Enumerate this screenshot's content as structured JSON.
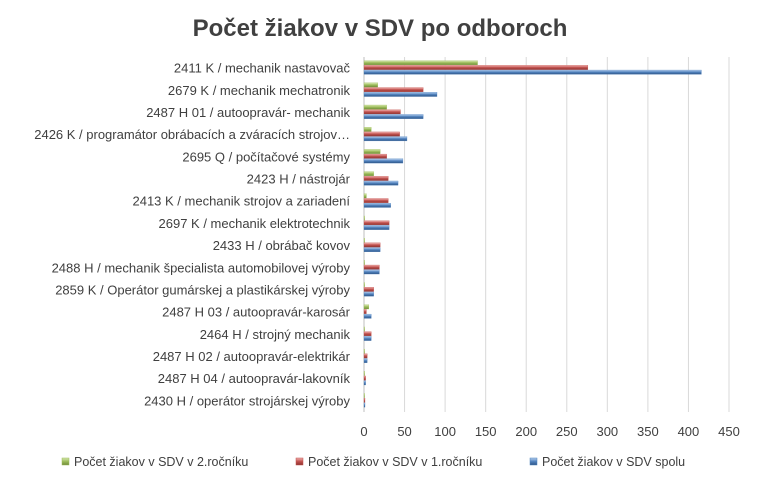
{
  "chart_data": {
    "type": "bar",
    "orientation": "horizontal",
    "title": "Počet žiakov v SDV po odboroch",
    "xlim": [
      0,
      450
    ],
    "x_ticks": [
      "0",
      "50",
      "100",
      "150",
      "200",
      "250",
      "300",
      "350",
      "400",
      "450"
    ],
    "grid": "vertical",
    "legend_position": "bottom",
    "categories": [
      "2411 K  / mechanik nastavovač",
      "2679 K  / mechanik mechatronik",
      "2487 H 01 / autoopravár- mechanik",
      "2426 K / programátor obrábacích a zváracích strojov…",
      "2695 Q / počítačové systémy",
      "2423 H / nástrojár",
      "2413 K / mechanik strojov a zariadení",
      "2697 K  / mechanik elektrotechnik",
      "2433 H / obrábač kovov",
      "2488 H / mechanik špecialista automobilovej výroby",
      "2859 K / Operátor gumárskej a plastikárskej výroby",
      "2487 H 03 / autoopravár-karosár",
      "2464 H / strojný mechanik",
      "2487 H 02 / autoopravár-elektrikár",
      "2487 H 04 / autoopravár-lakovník",
      "2430 H / operátor strojárskej výroby"
    ],
    "series": [
      {
        "name": "Počet žiakov v SDV v 2.ročníku",
        "color": "#9bbb59",
        "values": [
          140,
          17,
          28,
          9,
          20,
          12,
          3,
          0,
          0,
          0,
          0,
          6,
          0,
          0,
          0,
          0
        ]
      },
      {
        "name": "Počet žiakov v SDV v 1.ročníku",
        "color": "#c0504d",
        "values": [
          276,
          73,
          45,
          44,
          28,
          30,
          30,
          31,
          20,
          19,
          12,
          3,
          9,
          4,
          2,
          1
        ]
      },
      {
        "name": "Počet žiakov v SDV spolu",
        "color": "#4f81bd",
        "values": [
          416,
          90,
          73,
          53,
          48,
          42,
          33,
          31,
          20,
          19,
          12,
          9,
          9,
          4,
          2,
          1
        ]
      }
    ]
  }
}
